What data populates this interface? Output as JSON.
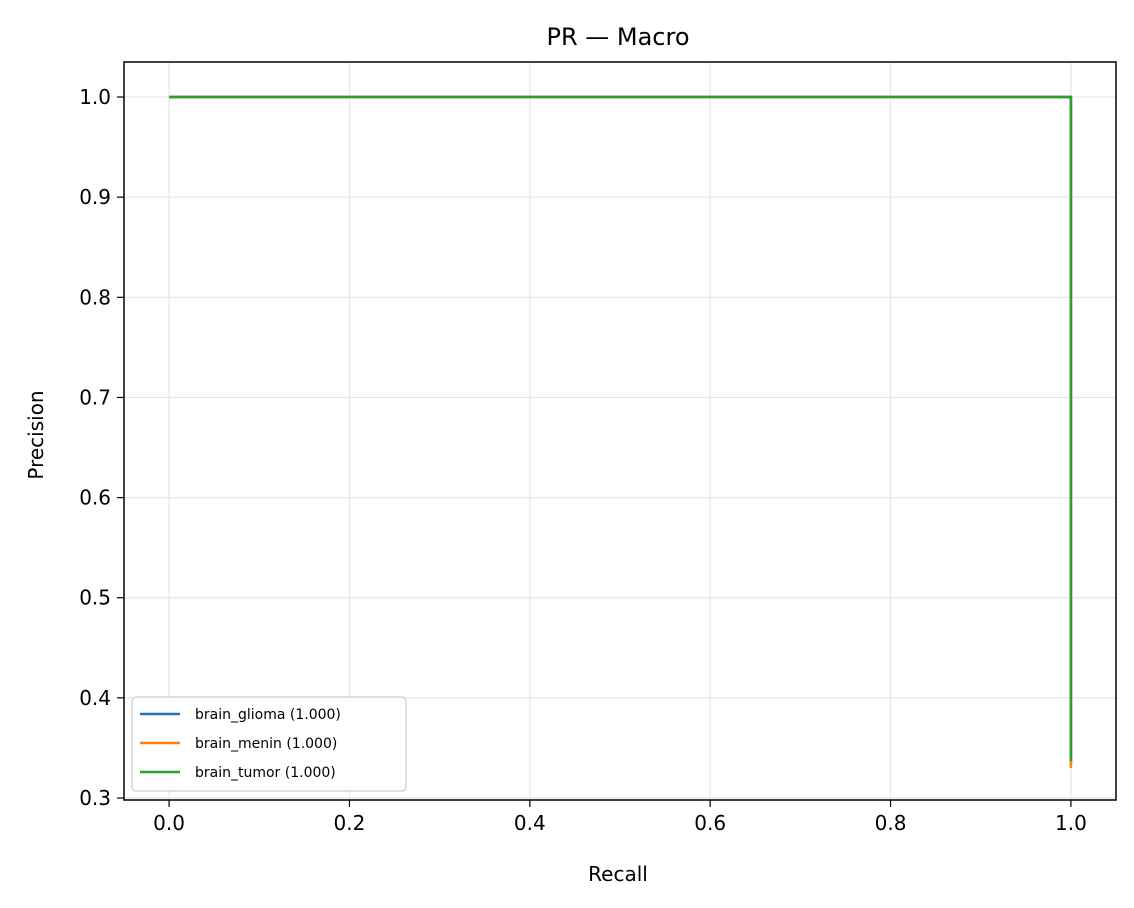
{
  "chart_data": {
    "type": "line",
    "title": "PR — Macro",
    "xlabel": "Recall",
    "ylabel": "Precision",
    "xlim": [
      -0.05,
      1.05
    ],
    "ylim": [
      0.298,
      1.035
    ],
    "xticks": [
      0.0,
      0.2,
      0.4,
      0.6,
      0.8,
      1.0
    ],
    "xtick_labels": [
      "0.0",
      "0.2",
      "0.4",
      "0.6",
      "0.8",
      "1.0"
    ],
    "yticks": [
      0.3,
      0.4,
      0.5,
      0.6,
      0.7,
      0.8,
      0.9,
      1.0
    ],
    "ytick_labels": [
      "0.3",
      "0.4",
      "0.5",
      "0.6",
      "0.7",
      "0.8",
      "0.9",
      "1.0"
    ],
    "grid": true,
    "legend_position": "lower-left",
    "series": [
      {
        "name": "brain_glioma (1.000)",
        "color": "#1f77b4",
        "x": [
          1.0,
          1.0,
          0.0
        ],
        "y": [
          0.333,
          1.0,
          1.0
        ]
      },
      {
        "name": "brain_menin (1.000)",
        "color": "#ff7f0e",
        "x": [
          1.0,
          1.0,
          0.0
        ],
        "y": [
          0.33,
          1.0,
          1.0
        ]
      },
      {
        "name": "brain_tumor (1.000)",
        "color": "#2ca02c",
        "x": [
          1.0,
          1.0,
          0.0
        ],
        "y": [
          0.337,
          1.0,
          1.0
        ]
      }
    ]
  }
}
